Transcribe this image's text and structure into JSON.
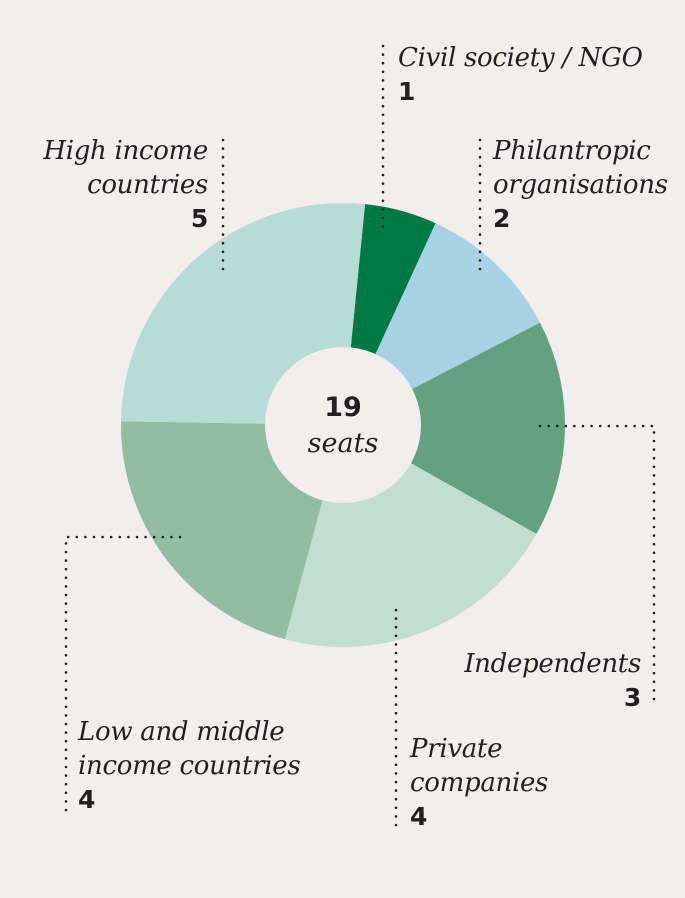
{
  "chart_data": {
    "type": "pie",
    "variant": "donut",
    "title": "",
    "center_label": {
      "value": "19",
      "unit": "seats"
    },
    "total": 19,
    "start_angle_deg": 5.7,
    "direction": "clockwise",
    "slices": [
      {
        "label": "Civil society / NGO",
        "value": 1,
        "color": "#007a45"
      },
      {
        "label": "Philantropic organisations",
        "value": 2,
        "color": "#a8d1e6"
      },
      {
        "label": "Independents",
        "value": 3,
        "color": "#64a27f"
      },
      {
        "label": "Private companies",
        "value": 4,
        "color": "#c2dece"
      },
      {
        "label": "Low and middle income countries",
        "value": 4,
        "color": "#92bda2"
      },
      {
        "label": "High income countries",
        "value": 5,
        "color": "#b7dbd5"
      }
    ],
    "legend": "callout labels with dotted leader lines"
  },
  "labels": {
    "civil": {
      "line1": "Civil society / NGO",
      "value": "1"
    },
    "phil": {
      "line1": "Philantropic",
      "line2": "organisations",
      "value": "2"
    },
    "indep": {
      "line1": "Independents",
      "value": "3"
    },
    "private": {
      "line1": "Private",
      "line2": "companies",
      "value": "4"
    },
    "low": {
      "line1": "Low and middle",
      "line2": "income countries",
      "value": "4"
    },
    "high": {
      "line1": "High income",
      "line2": "countries",
      "value": "5"
    }
  },
  "center": {
    "value": "19",
    "unit": "seats"
  }
}
